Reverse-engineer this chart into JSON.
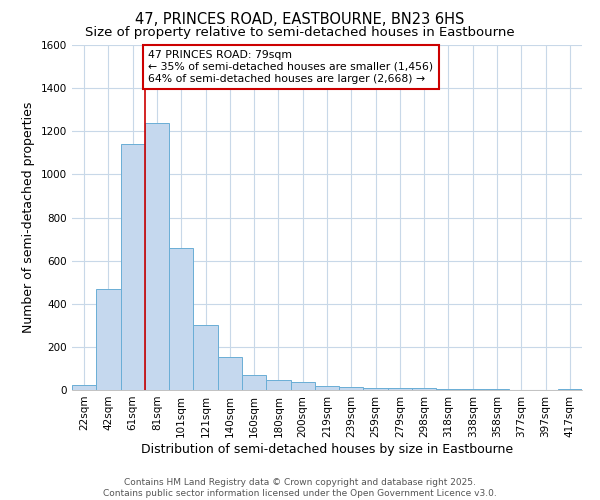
{
  "title": "47, PRINCES ROAD, EASTBOURNE, BN23 6HS",
  "subtitle": "Size of property relative to semi-detached houses in Eastbourne",
  "xlabel": "Distribution of semi-detached houses by size in Eastbourne",
  "ylabel": "Number of semi-detached properties",
  "categories": [
    "22sqm",
    "42sqm",
    "61sqm",
    "81sqm",
    "101sqm",
    "121sqm",
    "140sqm",
    "160sqm",
    "180sqm",
    "200sqm",
    "219sqm",
    "239sqm",
    "259sqm",
    "279sqm",
    "298sqm",
    "318sqm",
    "338sqm",
    "358sqm",
    "377sqm",
    "397sqm",
    "417sqm"
  ],
  "values": [
    25,
    470,
    1140,
    1240,
    660,
    300,
    155,
    68,
    45,
    35,
    20,
    13,
    10,
    10,
    8,
    5,
    4,
    3,
    2,
    2,
    5
  ],
  "bar_color": "#c5d8ee",
  "bar_edgecolor": "#6aaed6",
  "vline_x_index": 3,
  "vline_color": "#cc0000",
  "annotation_text": "47 PRINCES ROAD: 79sqm\n← 35% of semi-detached houses are smaller (1,456)\n64% of semi-detached houses are larger (2,668) →",
  "annotation_box_facecolor": "#ffffff",
  "annotation_box_edgecolor": "#cc0000",
  "ylim": [
    0,
    1600
  ],
  "yticks": [
    0,
    200,
    400,
    600,
    800,
    1000,
    1200,
    1400,
    1600
  ],
  "footnote": "Contains HM Land Registry data © Crown copyright and database right 2025.\nContains public sector information licensed under the Open Government Licence v3.0.",
  "background_color": "#ffffff",
  "grid_color": "#c8d8e8",
  "title_fontsize": 10.5,
  "subtitle_fontsize": 9.5,
  "tick_fontsize": 7.5,
  "label_fontsize": 9,
  "footnote_fontsize": 6.5
}
